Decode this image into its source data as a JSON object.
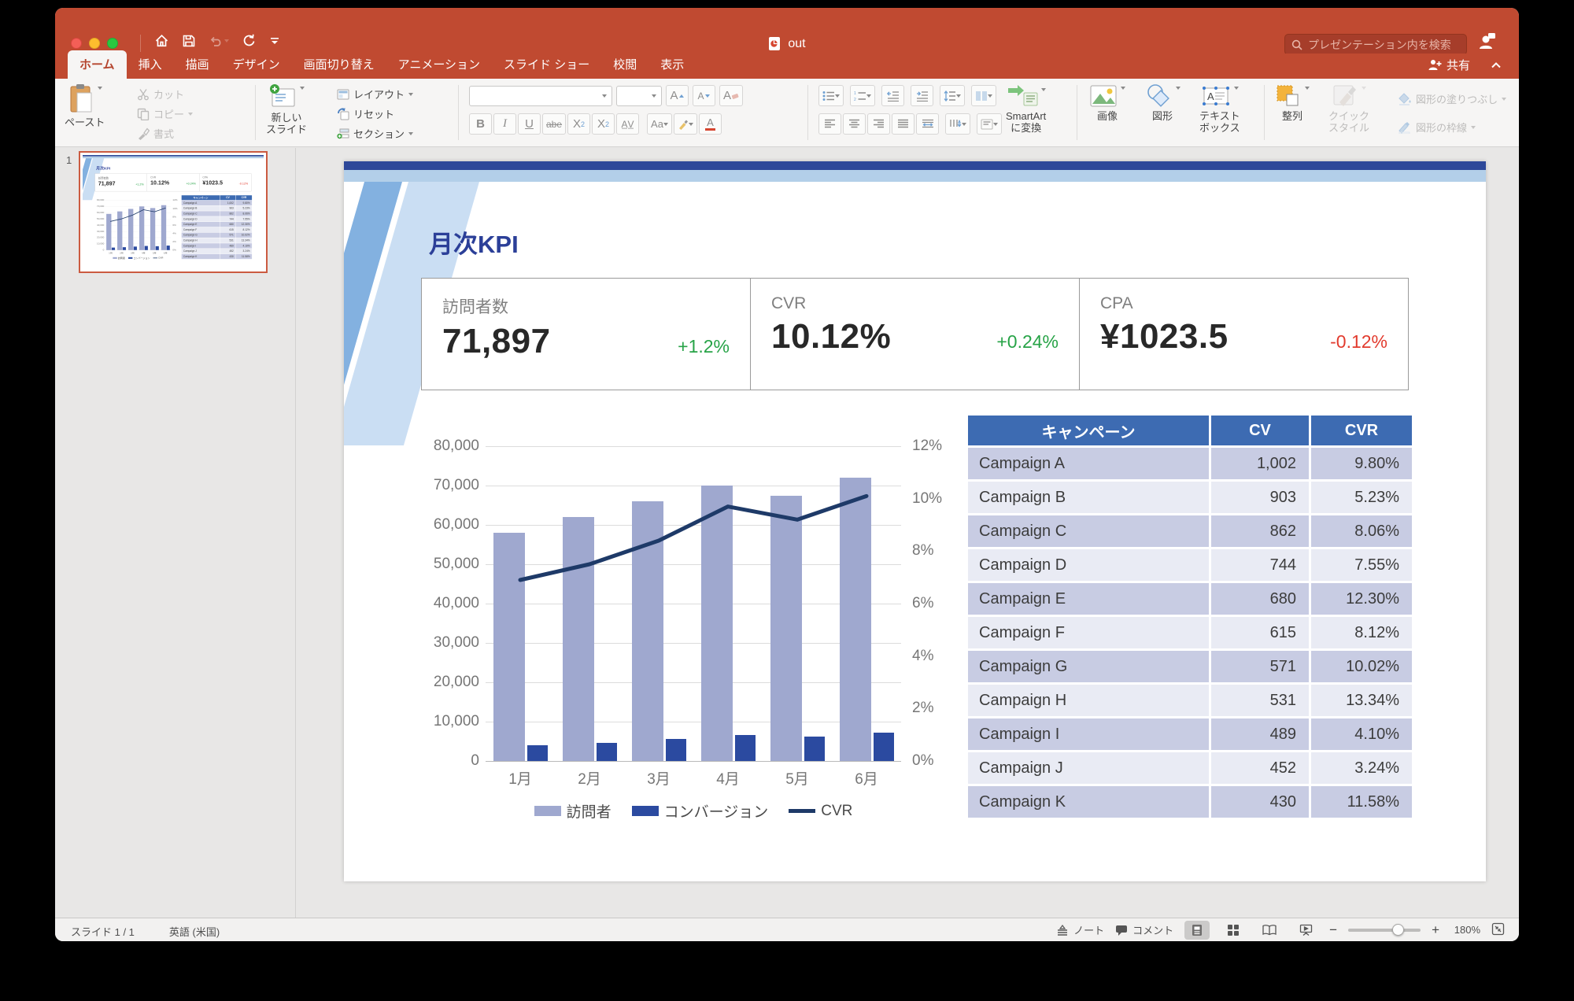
{
  "window": {
    "doc_title": "out",
    "search_placeholder": "プレゼンテーション内を検索",
    "share_label": "共有"
  },
  "tabs": {
    "items": [
      "ホーム",
      "挿入",
      "描画",
      "デザイン",
      "画面切り替え",
      "アニメーション",
      "スライド ショー",
      "校閲",
      "表示"
    ],
    "active_index": 0
  },
  "ribbon": {
    "paste": "ペースト",
    "cut": "カット",
    "copy": "コピー",
    "format_painter": "書式",
    "new_slide": "新しい\nスライド",
    "layout": "レイアウト",
    "reset": "リセット",
    "section": "セクション",
    "smartart_convert": "SmartArt\nに変換",
    "image": "画像",
    "shapes": "図形",
    "text_box": "テキスト\nボックス",
    "arrange": "整列",
    "quick_styles": "クイック\nスタイル",
    "shape_fill": "図形の塗りつぶし",
    "shape_outline": "図形の枠線",
    "font_name_value": "",
    "font_size_value": ""
  },
  "thumbnails": {
    "slide_number": "1"
  },
  "slide": {
    "title": "月次KPI",
    "kpis": [
      {
        "label": "訪問者数",
        "value": "71,897",
        "delta": "+1.2%",
        "direction": "up"
      },
      {
        "label": "CVR",
        "value": "10.12%",
        "delta": "+0.24%",
        "direction": "up"
      },
      {
        "label": "CPA",
        "value": "¥1023.5",
        "delta": "-0.12%",
        "direction": "down"
      }
    ]
  },
  "chart_data": {
    "type": "combo",
    "categories": [
      "1月",
      "2月",
      "3月",
      "4月",
      "5月",
      "6月"
    ],
    "series": [
      {
        "name": "訪問者",
        "type": "bar",
        "axis": "left",
        "color": "#9fa8cf",
        "values": [
          58000,
          62000,
          66000,
          70000,
          67500,
          72000
        ]
      },
      {
        "name": "コンバージョン",
        "type": "bar",
        "axis": "left",
        "color": "#2b4aa0",
        "values": [
          4000,
          4700,
          5600,
          6700,
          6200,
          7200
        ]
      },
      {
        "name": "CVR",
        "type": "line",
        "axis": "right",
        "color": "#1e3a68",
        "values": [
          6.9,
          7.5,
          8.4,
          9.7,
          9.2,
          10.1
        ]
      }
    ],
    "left_axis": {
      "min": 0,
      "max": 80000,
      "step": 10000
    },
    "right_axis": {
      "min": 0,
      "max": 12,
      "step": 2,
      "suffix": "%"
    },
    "legend_position": "bottom",
    "grid": true
  },
  "table": {
    "headers": [
      "キャンペーン",
      "CV",
      "CVR"
    ],
    "rows": [
      [
        "Campaign A",
        "1,002",
        "9.80%"
      ],
      [
        "Campaign B",
        "903",
        "5.23%"
      ],
      [
        "Campaign C",
        "862",
        "8.06%"
      ],
      [
        "Campaign D",
        "744",
        "7.55%"
      ],
      [
        "Campaign E",
        "680",
        "12.30%"
      ],
      [
        "Campaign F",
        "615",
        "8.12%"
      ],
      [
        "Campaign G",
        "571",
        "10.02%"
      ],
      [
        "Campaign H",
        "531",
        "13.34%"
      ],
      [
        "Campaign I",
        "489",
        "4.10%"
      ],
      [
        "Campaign J",
        "452",
        "3.24%"
      ],
      [
        "Campaign K",
        "430",
        "11.58%"
      ]
    ]
  },
  "status_bar": {
    "slide_info": "スライド 1 / 1",
    "language": "英語 (米国)",
    "notes_label": "ノート",
    "comments_label": "コメント",
    "zoom_level": "180%"
  },
  "colors": {
    "accent_red": "#c04a31",
    "positive_green": "#27a347",
    "negative_red": "#e23b2e",
    "table_header_blue": "#3d6bb2",
    "bar_visitors": "#9fa8cf",
    "bar_conversions": "#2b4aa0",
    "line_cvr": "#1e3a68"
  }
}
